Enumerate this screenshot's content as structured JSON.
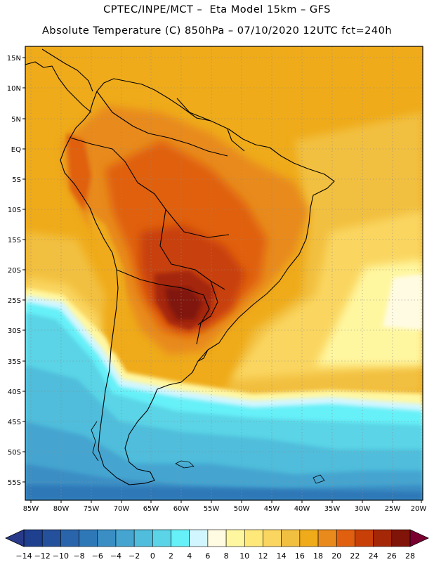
{
  "title": {
    "line1": "CPTEC/INPE/MCT –  Eta Model 15km – GFS",
    "line2": "Absolute Temperature (C) 850hPa – 07/10/2020 12UTC fct=240h"
  },
  "map": {
    "lat_labels": [
      "15N",
      "10N",
      "5N",
      "EQ",
      "5S",
      "10S",
      "15S",
      "20S",
      "25S",
      "30S",
      "35S",
      "40S",
      "45S",
      "50S",
      "55S"
    ],
    "lon_labels": [
      "85W",
      "80W",
      "75W",
      "70W",
      "65W",
      "60W",
      "55W",
      "50W",
      "45W",
      "40W",
      "35W",
      "30W",
      "25W",
      "20W"
    ]
  },
  "colorbar": {
    "labels": [
      "-14",
      "-12",
      "-10",
      "-8",
      "-6",
      "-4",
      "-2",
      "0",
      "2",
      "4",
      "6",
      "8",
      "10",
      "12",
      "14",
      "16",
      "18",
      "20",
      "22",
      "24",
      "26",
      "28"
    ],
    "colors": [
      "#1f3f8f",
      "#25509c",
      "#2a64aa",
      "#2f78b8",
      "#3a8ec4",
      "#45a5d0",
      "#4fbddb",
      "#5ad4e6",
      "#66f0f8",
      "#d2f6ff",
      "#fffbe2",
      "#fff7a0",
      "#ffe87a",
      "#fad660",
      "#f2c040",
      "#efab1a",
      "#e88a1c",
      "#e06010",
      "#c84008",
      "#a42808",
      "#801408"
    ],
    "low_color": "#2a3a8a",
    "high_color": "#7a0030"
  },
  "colors": {
    "ocean_warm": "#efab1a",
    "ocean_mid": "#f2c040",
    "continent": "#e88a1c",
    "hot_core": "#c84008",
    "coast_line": "#000000"
  }
}
